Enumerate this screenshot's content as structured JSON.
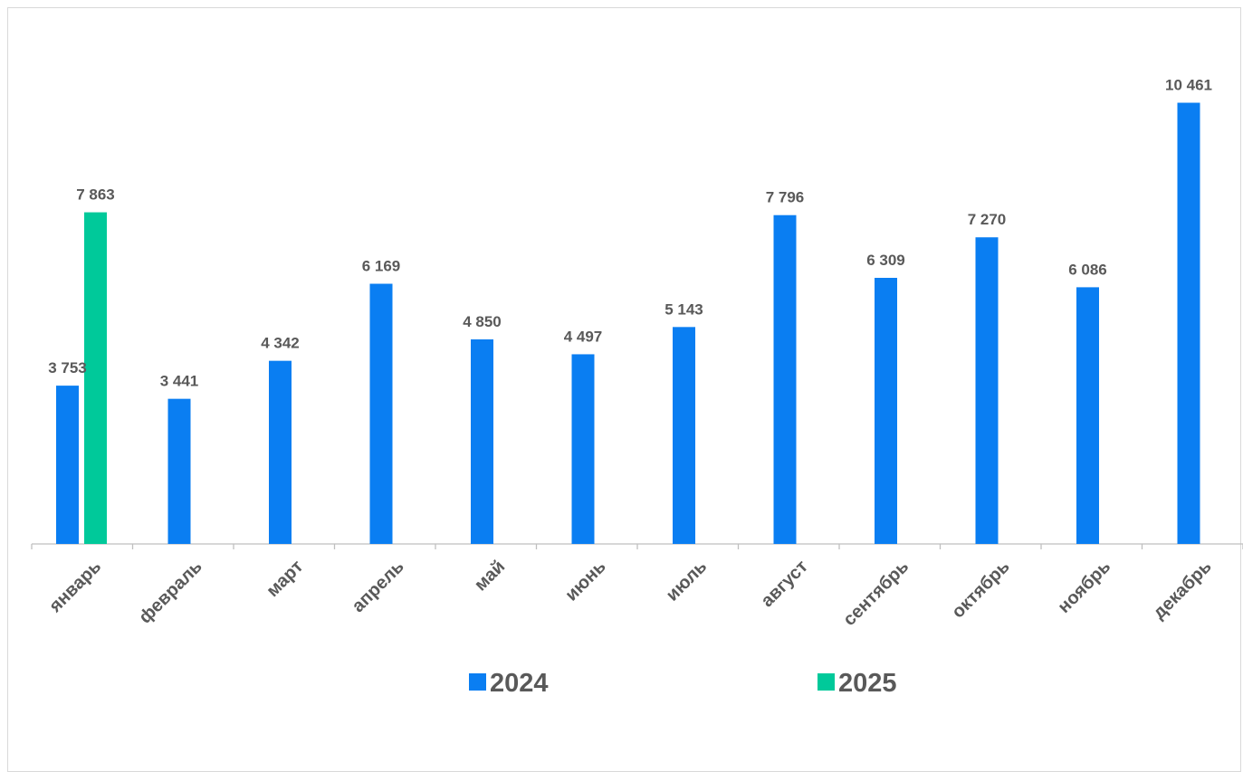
{
  "chart_data": {
    "type": "bar",
    "title": "",
    "xlabel": "",
    "ylabel": "",
    "categories": [
      "январь",
      "февраль",
      "март",
      "апрель",
      "май",
      "июнь",
      "июль",
      "август",
      "сентябрь",
      "октябрь",
      "ноябрь",
      "декабрь"
    ],
    "series": [
      {
        "name": "2024",
        "color": "#0a7ef2",
        "values": [
          3753,
          3441,
          4342,
          6169,
          4850,
          4497,
          5143,
          7796,
          6309,
          7270,
          6086,
          10461
        ],
        "labels": [
          "3 753",
          "3 441",
          "4 342",
          "6 169",
          "4 850",
          "4 497",
          "5 143",
          "7 796",
          "6 309",
          "7 270",
          "6 086",
          "10 461"
        ]
      },
      {
        "name": "2025",
        "color": "#00c99a",
        "values": [
          7863,
          null,
          null,
          null,
          null,
          null,
          null,
          null,
          null,
          null,
          null,
          null
        ],
        "labels": [
          "7 863",
          "",
          "",
          "",
          "",
          "",
          "",
          "",
          "",
          "",
          "",
          ""
        ]
      }
    ],
    "ylim": [
      0,
      12500
    ],
    "grid": false,
    "legend_position": "bottom"
  }
}
